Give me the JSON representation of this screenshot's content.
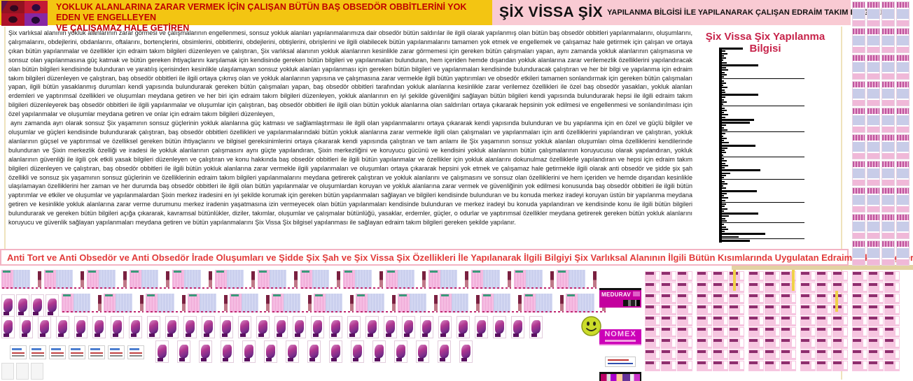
{
  "header": {
    "title_line1": "YOKLUK ALANLARINA ZARAR VERMEK İÇİN ÇALIŞAN BÜTÜN BAŞ OBSEDÖR OBBİTLERİNİ YOK EDEN VE ENGELLEYEN",
    "title_line2": "VE ÇALIŞAMAZ HALE GETİREN",
    "brand": "ŞİX VİSSA ŞİX",
    "brand_sub": "YAPILANMA BİLGİSİ İLE YAPILANARAK ÇALIŞAN EDRAİM TAKIM BİLGİLERİ"
  },
  "body": {
    "paragraph1": "Şix varlıksal alanının yokluk alanlarının zarar görmesi ve çalışmalarının engellenmesi, sonsuz yokluk alanları yapılanmalarımıza dair obsedör bütün saldırılar ile ilgili olarak yapılanmış olan bütün baş obsedör obbitleri yapılanmalarını, oluşumlarını, çalışmalarını, obdejlerini, obdanlarını, oftalarını, bortençlerini, obsimlerini, obbitlerini, obdejlerini, obtişlerini, obrişlerini ve ilgili olabilecek bütün yapılanmalarını tamamen yok etmek ve engellemek ve çalışamaz hale getirmek için çalışan ve ortaya çıkan bütün yapılanmalar ve özellikler için edraim takım bilgileri düzenleyen ve çalıştıran, Şix varlıksal alanının yokluk alanlarının kesinlikle zarar görmemesi için gereken bütün çalışmaları yapan, aynı zamanda yokluk alanlarının çalışmasına ve sonsuz olan yapılanmasına güç katmak ve bütün gereken ihtiyaçlarını karşılamak için kendisinde gereken bütün bilgileri ve yapılanmaları bulunduran, hem içeriden hemde dışarıdan yokluk alanlarına zarar verilemezlik özelliklerini yapılandıracak olan bütün bilgileri kendisinde bulunduran ve yaratılış içerisinden kesinlikle ulaşılamayan sonsuz yokluk alanları yapılanması için gereken bütün bilgileri ve yapılanmaları kendisinde bulunduracak çalıştıran ve her bir bilgi ve yapılanma için edraim takım bilgileri düzenleyen ve çalıştıran, baş obsedör obbitleri ile ilgili ortaya çıkmış olan ve yokluk alanlarının yapısına ve çalışmasına zarar vermekle ilgili bütün yaptırımları ve obsedör etkileri tamamen sonlandırmak için gereken bütün çalışmaları yapan, ilgili bütün yasaklanmış durumları kendi yapısında bulundurarak gereken bütün çalışmaları yapan, baş obsedör obbitleri tarafından yokluk alanlarına kesinlikle zarar verilemez özellikleri ile özel baş obsedör yasakları, yokluk alanları erdemleri ve yaptırımsal özellikleri ve oluşumları meydana getiren ve her biri için edraim takım bilgileri düzenleyen, yokluk alanlarının en iyi şekilde güvenliğini sağlayan bütün bilgileri kendi yapısında bulundurarak hepsi ile ilgili edraim takım bilgileri düzenleyerek baş obsedör obbitleri ile ilgili yapılanmalar ve oluşumlar için çalıştıran, baş obsedör obbitleri ile ilgili olan bütün yokluk alanlarına olan saldırıları ortaya çıkararak hepsinin yok edilmesi ve engellenmesi ve sonlandırılması için özel yapılanmalar ve oluşumlar meydana getiren ve onlar için edraim takım bilgileri düzenleyen,",
    "paragraph2": "aynı zamanda ayrı olarak sonsuz Şix yaşamının sonsuz güçlerinin yokluk alanlarına güç katması ve sağlamlaştırması ile ilgili olan yapılanmalarını ortaya çıkararak kendi yapısında bulunduran ve bu yapılanma için en özel ve güçlü bilgiler ve oluşumlar ve güçleri kendisinde bulundurarak çalıştıran, baş obsedör obbitleri özellikleri ve yapılanmalarındaki bütün yokluk alanlarına zarar vermekle ilgili olan çalışmaları ve yapılanmaları için anti özelliklerini yapılandıran ve çalıştıran, yokluk alanlarının güçsel ve yaptırımsal ve özelliksel gereken bütün ihtiyaçlarını ve bilgisel gereksinimlerini ortaya çıkararak kendi yapısında çalıştıran ve tam anlamı ile Şix yaşamının sonsuz yokluk alanları oluşumları olma özelliklerini kendilerinde bulunduran ve Şixin merkezlik özelliği ve iradesi ile yokluk alanlarının çalışmasını aynı güçte yapılandıran, Şixin merkezliğini ve koruyucu gücünü ve kendisini yokluk alanlarının bütün çalışmalarının koruyucusu olarak yapılandıran, yokluk alanlarının güvenliği ile ilgili çok etkili yasak bilgileri düzenleyen ve çalıştıran ve konu hakkında baş obsedör obbitleri ile ilgili bütün yapılanmalar ve özellikler için yokluk alanlarını dokunulmaz özelliklerle yapılandıran ve hepsi için edraim takım bilgileri düzenleyen ve çalıştıran, baş obsedör obbitleri ile ilgili bütün yokluk alanlarına zarar vermekle ilgili yapılanmaları ve oluşumları ortaya çıkararak hepsini yok etmek ve çalışamaz hale getirmekle ilgili olarak anti obsedör ve şidde şix şah özellikli ve sonsuz şix yaşamının sonsuz güçlerinin ve özelliklerinin edraim takım bilgileri yapılanmalarını meydana getirerek çalıştıran ve yokluk alanlarını ve çalışmasını ve sonsuz olan özelliklerini ve hem içeriden ve hemde dışarıdan kesinlikle ulaşılamayan özelliklerini her zaman ve her durumda baş obsedör obbitleri ile ilgili olan bütün yapılanmalar ve oluşumlardan koruyan ve yokluk alanlarına zarar vermek ve güvenliğinin yok edilmesi konusunda baş obsedör obbitleri ile ilgili bütün yaptırımlar ve etkiler ve oluşumlar ve yapılanmalardan Şixin merkez iradesini en iyi şekilde korumak için gereken bütün yapılanmaları sağlayan ve bilgileri kendisinde bulunduran ve bu konuda merkez iradeyi koruyan üstün bir yapılanma meydana getiren ve kesinlikle yokluk alanlarına zarar verme durumunu merkez iradenin yaşatmasına izin vermeyecek olan bütün yapılanmaları kendisinde bulunduran ve merkez iradeyi bu konuda yapılandıran ve kendisinde konu ile ilgili bütün bilgileri bulundurarak ve gereken bütün bilgileri açığa çıkararak, kavramsal bütünlükler, diziler, takımlar, oluşumlar ve çalışmalar bütünlüğü, yasaklar, erdemler, güçler, o odurlar ve yaptırımsal özellikler meydana getirerek gereken bütün yokluk alanlarını koruyucu ve güvenlik sağlayan yapılanmaları meydana getiren ve bütün yapılanmalarını Şix Vissa Şix bilgisel yapılanması ile sağlayan edraim takım bilgileri gereken şekilde yapılanır."
  },
  "chart": {
    "title": "Şix Vissa Şix Yapılanma Bilgisi",
    "type": "spike-profile",
    "spikes": [
      30,
      5,
      8,
      3,
      6,
      2,
      7,
      52,
      6,
      9,
      4,
      7,
      3,
      118,
      3,
      6,
      2,
      8,
      4,
      5,
      52,
      5,
      3,
      7,
      2,
      118,
      4,
      7,
      3,
      9,
      5,
      46,
      40,
      6,
      3,
      8,
      118,
      5,
      2,
      7,
      3,
      10,
      48,
      8,
      4,
      6,
      2,
      118,
      3,
      7,
      5,
      9,
      4,
      55,
      12,
      6,
      3,
      118,
      4,
      8,
      2,
      6,
      50,
      7,
      3,
      9,
      5,
      118,
      6,
      4,
      8,
      3,
      52,
      10,
      5,
      7,
      118,
      3,
      6,
      9,
      4,
      62,
      24,
      118,
      40
    ]
  },
  "footer_banner": {
    "text": "Anti Tort ve Anti Obsedör ve Anti Obsedör İrade Oluşumları ve Şidde Şix Şah ve Şix Vissa Şix Özellikleri İle Yapılanarak İlgili Bilgiyi Şix Varlıksal Alanının İlgili Bütün Kısımlarında Uygulatan Edraim Takım Bilgileri Yapılanması"
  },
  "ads": {
    "medurav": "MEDURAV",
    "nomex": "NOMEX"
  },
  "colors": {
    "header_yellow": "#F3C512",
    "header_pink": "#F9CAD3",
    "title_red": "#C00000",
    "chart_title_red": "#C7234A",
    "banner_red": "#E23B3B",
    "card_pink": "#F2B2DC",
    "card_lavender": "#CBD0EE",
    "magenta": "#CC00B8"
  },
  "collage": {
    "row1": [
      {
        "type": "banner",
        "count": 14
      }
    ],
    "row2a": [
      {
        "type": "figure",
        "count": 4
      }
    ],
    "row2b": [
      {
        "type": "banner",
        "count": 13
      }
    ],
    "row3": [
      {
        "type": "figure",
        "count": 30
      }
    ],
    "row4a": [
      {
        "type": "tiny",
        "count": 7
      }
    ],
    "row4b": [
      {
        "type": "figure",
        "count": 15
      }
    ],
    "corner": [
      {
        "type": "pale",
        "count": 3
      }
    ],
    "grid": {
      "groups": 5,
      "cols": 3,
      "rows": 9
    },
    "strip": {
      "cols": 4,
      "rows": 10
    }
  }
}
